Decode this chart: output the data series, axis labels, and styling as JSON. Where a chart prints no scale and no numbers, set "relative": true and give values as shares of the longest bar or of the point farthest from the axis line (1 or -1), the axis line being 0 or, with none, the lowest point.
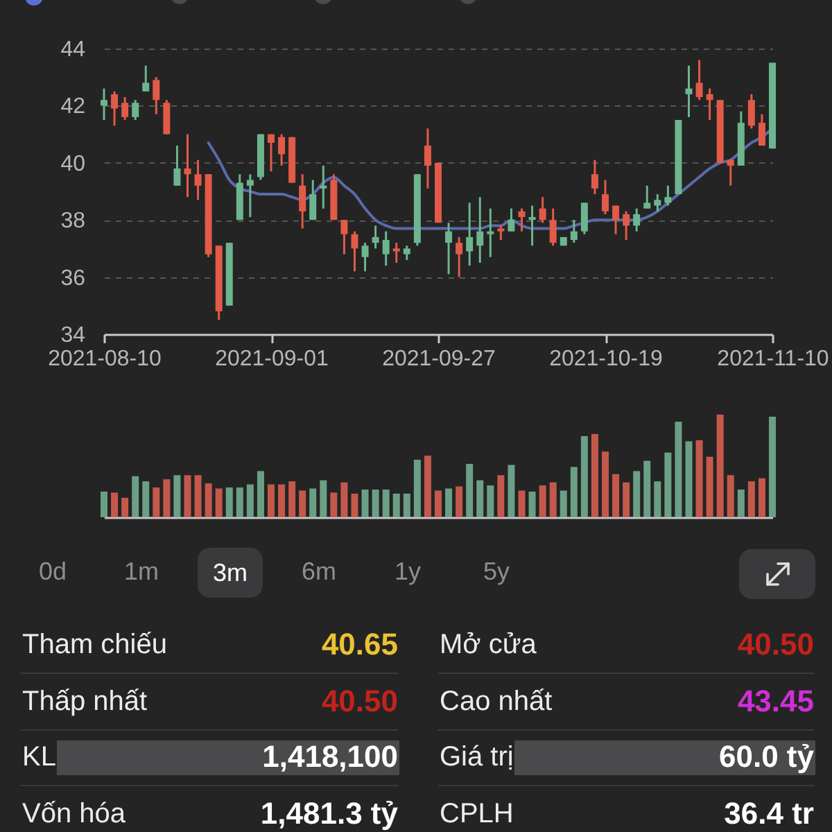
{
  "chart_data": [
    {
      "type": "candlestick",
      "categories": [
        "2021-08-10",
        null,
        null,
        null,
        null,
        null,
        null,
        null,
        null,
        null,
        null,
        null,
        null,
        null,
        null,
        null,
        "2021-09-01",
        null,
        null,
        null,
        null,
        null,
        null,
        null,
        null,
        null,
        null,
        null,
        null,
        null,
        null,
        null,
        "2021-09-27",
        null,
        null,
        null,
        null,
        null,
        null,
        null,
        null,
        null,
        null,
        null,
        null,
        null,
        null,
        null,
        "2021-10-19",
        null,
        null,
        null,
        null,
        null,
        null,
        null,
        null,
        null,
        null,
        null,
        null,
        null,
        null,
        null,
        "2021-11-10"
      ],
      "ohlc": [
        [
          42.0,
          42.6,
          41.5,
          42.2
        ],
        [
          42.4,
          42.5,
          41.3,
          41.9
        ],
        [
          42.1,
          42.3,
          41.5,
          41.6
        ],
        [
          41.6,
          42.2,
          41.5,
          42.1
        ],
        [
          42.5,
          43.4,
          42.5,
          42.8
        ],
        [
          42.9,
          43.0,
          41.7,
          42.2
        ],
        [
          42.1,
          42.2,
          41.0,
          41.0
        ],
        [
          39.2,
          40.6,
          39.2,
          39.8
        ],
        [
          39.8,
          41.0,
          38.8,
          39.6
        ],
        [
          39.6,
          40.1,
          38.7,
          39.2
        ],
        [
          39.6,
          39.6,
          36.7,
          36.8
        ],
        [
          37.1,
          37.1,
          34.5,
          34.8
        ],
        [
          35.0,
          37.2,
          35.0,
          37.2
        ],
        [
          38.0,
          39.6,
          38.0,
          39.3
        ],
        [
          39.2,
          39.6,
          38.1,
          39.4
        ],
        [
          39.5,
          41.0,
          39.4,
          41.0
        ],
        [
          41.0,
          41.0,
          39.7,
          40.7
        ],
        [
          40.9,
          41.0,
          39.9,
          40.3
        ],
        [
          40.9,
          40.9,
          39.3,
          39.3
        ],
        [
          39.2,
          39.6,
          37.7,
          38.3
        ],
        [
          38.0,
          39.4,
          38.0,
          38.9
        ],
        [
          39.1,
          39.9,
          38.4,
          39.2
        ],
        [
          39.4,
          39.6,
          38.0,
          38.0
        ],
        [
          38.0,
          38.0,
          36.8,
          37.5
        ],
        [
          37.5,
          37.6,
          36.2,
          37.0
        ],
        [
          36.7,
          37.2,
          36.2,
          37.1
        ],
        [
          37.2,
          37.8,
          37.0,
          37.4
        ],
        [
          36.8,
          37.6,
          36.4,
          37.3
        ],
        [
          37.0,
          37.2,
          36.5,
          36.9
        ],
        [
          36.8,
          37.1,
          36.6,
          37.0
        ],
        [
          37.2,
          39.6,
          37.1,
          39.6
        ],
        [
          40.6,
          41.2,
          39.1,
          39.9
        ],
        [
          40.0,
          40.0,
          37.9,
          37.9
        ],
        [
          37.2,
          37.9,
          36.1,
          37.6
        ],
        [
          37.2,
          37.4,
          36.0,
          36.8
        ],
        [
          36.9,
          38.6,
          36.4,
          37.4
        ],
        [
          37.1,
          38.8,
          36.5,
          37.6
        ],
        [
          37.5,
          38.4,
          36.7,
          37.6
        ],
        [
          37.7,
          37.8,
          37.3,
          37.6
        ],
        [
          37.6,
          38.4,
          37.6,
          38.0
        ],
        [
          38.3,
          38.4,
          37.6,
          38.1
        ],
        [
          38.0,
          38.5,
          37.1,
          38.1
        ],
        [
          38.4,
          38.8,
          37.9,
          38.0
        ],
        [
          38.0,
          38.4,
          37.1,
          37.2
        ],
        [
          37.1,
          37.4,
          37.1,
          37.4
        ],
        [
          37.3,
          38.0,
          37.2,
          37.6
        ],
        [
          37.6,
          38.6,
          37.5,
          38.6
        ],
        [
          39.6,
          40.1,
          38.9,
          39.1
        ],
        [
          38.9,
          39.4,
          38.2,
          38.3
        ],
        [
          38.5,
          38.5,
          37.5,
          38.0
        ],
        [
          38.2,
          38.3,
          37.3,
          37.8
        ],
        [
          37.8,
          38.4,
          37.6,
          38.2
        ],
        [
          38.4,
          39.2,
          38.4,
          38.6
        ],
        [
          38.5,
          38.9,
          38.3,
          38.7
        ],
        [
          38.6,
          39.2,
          38.5,
          38.8
        ],
        [
          38.9,
          41.5,
          38.9,
          41.5
        ],
        [
          42.4,
          43.4,
          41.6,
          42.6
        ],
        [
          42.8,
          43.6,
          42.2,
          42.3
        ],
        [
          42.4,
          42.6,
          41.5,
          42.2
        ],
        [
          42.2,
          42.2,
          40.0,
          40.0
        ],
        [
          40.1,
          40.1,
          39.2,
          39.9
        ],
        [
          39.9,
          41.8,
          39.9,
          41.4
        ],
        [
          42.2,
          42.4,
          41.2,
          41.3
        ],
        [
          41.4,
          41.7,
          40.6,
          40.6
        ],
        [
          40.5,
          43.5,
          40.5,
          43.5
        ]
      ],
      "colors": [
        "#6db58f",
        "#e25b48",
        "#e25b48",
        "#6db58f",
        "#6db58f",
        "#e25b48",
        "#e25b48",
        "#6db58f",
        "#e25b48",
        "#e25b48",
        "#e25b48",
        "#e25b48",
        "#6db58f",
        "#6db58f",
        "#6db58f",
        "#6db58f",
        "#e25b48",
        "#e25b48",
        "#e25b48",
        "#e25b48",
        "#6db58f",
        "#6db58f",
        "#e25b48",
        "#e25b48",
        "#e25b48",
        "#6db58f",
        "#6db58f",
        "#6db58f",
        "#e25b48",
        "#6db58f",
        "#6db58f",
        "#e25b48",
        "#e25b48",
        "#6db58f",
        "#e25b48",
        "#6db58f",
        "#6db58f",
        "#6db58f",
        "#e25b48",
        "#6db58f",
        "#e25b48",
        "#6db58f",
        "#e25b48",
        "#e25b48",
        "#6db58f",
        "#6db58f",
        "#6db58f",
        "#e25b48",
        "#e25b48",
        "#e25b48",
        "#e25b48",
        "#6db58f",
        "#6db58f",
        "#6db58f",
        "#6db58f",
        "#6db58f",
        "#6db58f",
        "#e25b48",
        "#e25b48",
        "#e25b48",
        "#e25b48",
        "#6db58f",
        "#e25b48",
        "#e25b48",
        "#6db58f"
      ],
      "series": [
        {
          "type": "line",
          "color": "#5a6aaa",
          "values": [
            null,
            null,
            null,
            null,
            null,
            null,
            null,
            null,
            null,
            null,
            40.7,
            40.1,
            39.4,
            39.1,
            39.0,
            38.9,
            38.9,
            38.9,
            38.8,
            38.7,
            38.9,
            39.3,
            39.5,
            39.2,
            38.9,
            38.4,
            38.0,
            37.8,
            37.7,
            37.7,
            37.7,
            37.7,
            37.7,
            37.7,
            37.7,
            37.7,
            37.7,
            37.8,
            37.8,
            38.0,
            37.8,
            37.7,
            37.7,
            37.7,
            37.7,
            37.8,
            37.9,
            38.0,
            38.0,
            38.0,
            38.0,
            38.0,
            38.1,
            38.3,
            38.6,
            38.9,
            39.2,
            39.5,
            39.8,
            40.0,
            40.1,
            40.4,
            40.7,
            40.9,
            41.2
          ]
        }
      ],
      "ylim": [
        34,
        44
      ],
      "yticks": [
        34,
        36,
        38,
        40,
        42,
        44
      ],
      "grid": "y"
    },
    {
      "type": "bar",
      "relative": true,
      "categories": [
        null,
        null,
        null,
        null,
        null,
        null,
        null,
        null,
        null,
        null,
        null,
        null,
        null,
        null,
        null,
        null,
        null,
        null,
        null,
        null,
        null,
        null,
        null,
        null,
        null,
        null,
        null,
        null,
        null,
        null,
        null,
        null,
        null,
        null,
        null,
        null,
        null,
        null,
        null,
        null,
        null,
        null,
        null,
        null,
        null,
        null,
        null,
        null,
        null,
        null,
        null,
        null,
        null,
        null,
        null,
        null,
        null,
        null,
        null,
        null,
        null,
        null,
        null,
        null,
        null
      ],
      "values": [
        0.25,
        0.24,
        0.19,
        0.4,
        0.35,
        0.29,
        0.37,
        0.41,
        0.41,
        0.41,
        0.33,
        0.28,
        0.29,
        0.29,
        0.32,
        0.45,
        0.32,
        0.32,
        0.35,
        0.26,
        0.28,
        0.36,
        0.24,
        0.34,
        0.23,
        0.27,
        0.27,
        0.27,
        0.23,
        0.23,
        0.56,
        0.6,
        0.26,
        0.28,
        0.3,
        0.52,
        0.36,
        0.31,
        0.41,
        0.51,
        0.26,
        0.25,
        0.31,
        0.34,
        0.26,
        0.49,
        0.79,
        0.81,
        0.64,
        0.42,
        0.34,
        0.45,
        0.55,
        0.35,
        0.63,
        0.93,
        0.74,
        0.75,
        0.59,
        1,
        0.41,
        0.27,
        0.35,
        0.38,
        0.98
      ],
      "colors": [
        "#6b9f86",
        "#c4594b",
        "#c4594b",
        "#6b9f86",
        "#6b9f86",
        "#c4594b",
        "#c4594b",
        "#6b9f86",
        "#c4594b",
        "#c4594b",
        "#c4594b",
        "#c4594b",
        "#6b9f86",
        "#6b9f86",
        "#6b9f86",
        "#6b9f86",
        "#c4594b",
        "#c4594b",
        "#c4594b",
        "#c4594b",
        "#6b9f86",
        "#6b9f86",
        "#c4594b",
        "#c4594b",
        "#c4594b",
        "#6b9f86",
        "#6b9f86",
        "#6b9f86",
        "#6b9f86",
        "#6b9f86",
        "#6b9f86",
        "#c4594b",
        "#c4594b",
        "#6b9f86",
        "#c4594b",
        "#6b9f86",
        "#6b9f86",
        "#6b9f86",
        "#c4594b",
        "#6b9f86",
        "#c4594b",
        "#6b9f86",
        "#c4594b",
        "#c4594b",
        "#6b9f86",
        "#6b9f86",
        "#6b9f86",
        "#c4594b",
        "#c4594b",
        "#c4594b",
        "#c4594b",
        "#6b9f86",
        "#6b9f86",
        "#6b9f86",
        "#6b9f86",
        "#6b9f86",
        "#6b9f86",
        "#c4594b",
        "#c4594b",
        "#c4594b",
        "#c4594b",
        "#6b9f86",
        "#c4594b",
        "#c4594b",
        "#6b9f86"
      ]
    },
    {
      "type": "other",
      "annotations": [
        "0d",
        "1m",
        "3m",
        "6m",
        "1y",
        "5y",
        "Tham chiếu",
        "40.65",
        "Mở cửa",
        "40.50",
        "Thấp nhất",
        "40.50",
        "Cao nhất",
        "43.45",
        "KL",
        "1,418,100",
        "Giá trị",
        "60.0 tỷ",
        "Vốn hóa",
        "1,481.3 tỷ",
        "CPLH",
        "36.4 tr"
      ]
    }
  ]
}
